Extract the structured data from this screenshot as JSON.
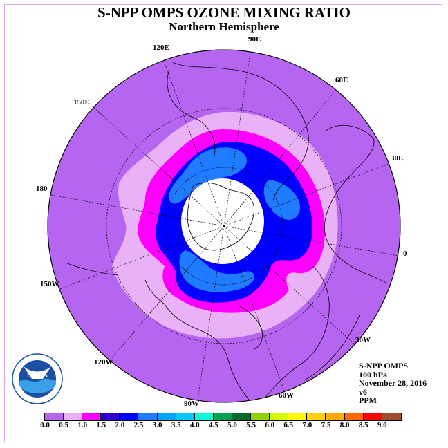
{
  "title": "S-NPP OMPS OZONE MIXING RATIO",
  "subtitle": "Northern Hemisphere",
  "longitude_labels": {
    "lon_90e": "90E",
    "lon_120e": "120E",
    "lon_60e": "60E",
    "lon_150e": "150E",
    "lon_30e": "30E",
    "lon_180": "180",
    "lon_0": "0",
    "lon_150w": "150W",
    "lon_30w": "30W",
    "lon_120w": "120W",
    "lon_60w": "60W",
    "lon_90w": "90W"
  },
  "info": {
    "instrument": "S-NPP OMPS",
    "level": "100 hPa",
    "date": "November 28, 2016",
    "version": "v6",
    "units": "PPM"
  },
  "logo": {
    "text": "NOAA",
    "ring_text": "NATIONAL OCEANIC AND ATMOSPHERIC ADMINISTRATION · U.S. DEPARTMENT OF COMMERCE"
  },
  "colorbar": {
    "colors": [
      "#b565f0",
      "#e9b2f6",
      "#ff00ff",
      "#2d00cc",
      "#0000ff",
      "#1f7bff",
      "#00a4ff",
      "#00c7ff",
      "#00ffd9",
      "#00a050",
      "#006a30",
      "#8fd400",
      "#d6ff00",
      "#ffff00",
      "#ffd400",
      "#ffaa00",
      "#ff6600",
      "#ff0000",
      "#a05030"
    ],
    "labels": [
      "0.0",
      "0.5",
      "1.0",
      "1.5",
      "2.0",
      "2.5",
      "3.0",
      "3.5",
      "4.0",
      "4.5",
      "5.0",
      "5.5",
      "6.0",
      "6.5",
      "7.0",
      "7.5",
      "8.0",
      "8.5",
      "9.0"
    ]
  },
  "map_colors": {
    "background_disk": "#b565f0",
    "level_0_5": "#e9b2f6",
    "level_1_0": "#ff00ff",
    "level_1_5": "#0000ff",
    "level_2_0": "#1f7bff",
    "polar_no_data": "#ffffff"
  }
}
